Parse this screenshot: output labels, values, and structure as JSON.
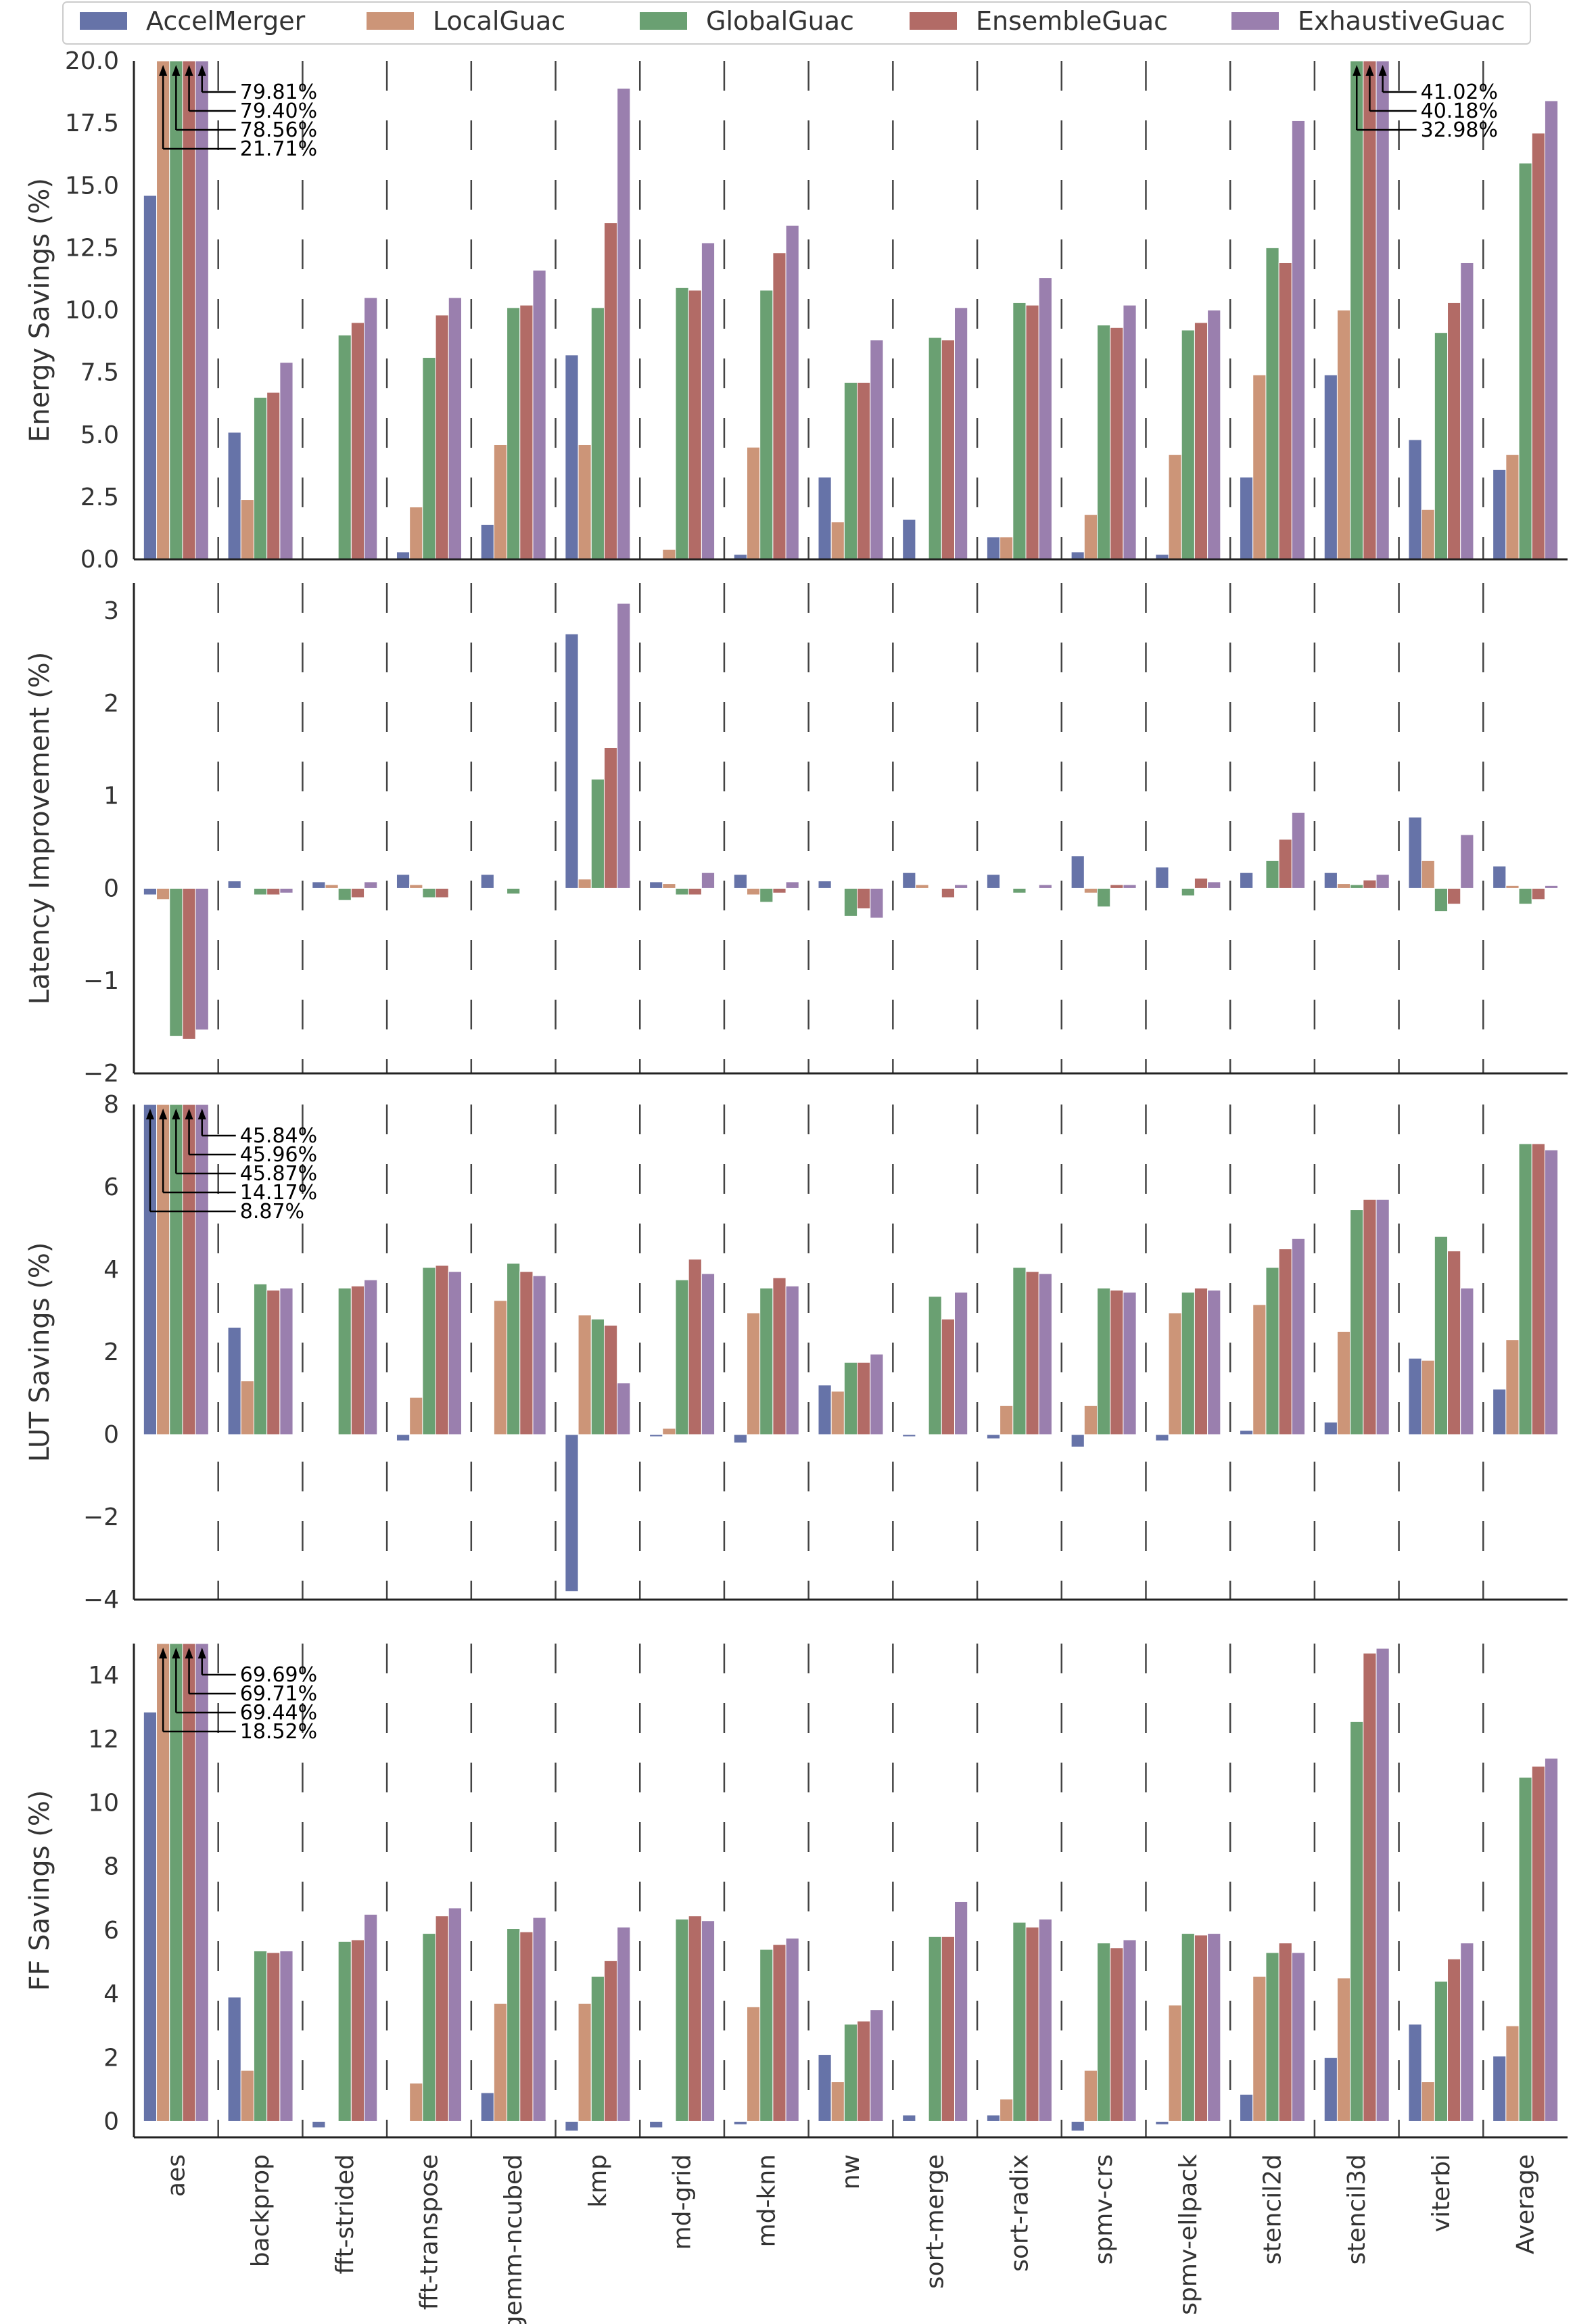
{
  "chart_data": {
    "type": "bar",
    "legend": {
      "placement": "top"
    },
    "categories": [
      "aes",
      "backprop",
      "fft-strided",
      "fft-transpose",
      "gemm-ncubed",
      "kmp",
      "md-grid",
      "md-knn",
      "nw",
      "sort-merge",
      "sort-radix",
      "spmv-crs",
      "spmv-ellpack",
      "stencil2d",
      "stencil3d",
      "viterbi",
      "Average"
    ],
    "series": [
      {
        "name": "AccelMerger",
        "color": "#6673a8"
      },
      {
        "name": "LocalGuac",
        "color": "#cc9578"
      },
      {
        "name": "GlobalGuac",
        "color": "#6aa072"
      },
      {
        "name": "EnsembleGuac",
        "color": "#b26b66"
      },
      {
        "name": "ExhaustiveGuac",
        "color": "#9a7fae"
      }
    ],
    "panels": [
      {
        "ylabel": "Energy Savings (%)",
        "ylim": [
          0,
          20
        ],
        "yticks": [
          0,
          2.5,
          5,
          7.5,
          10,
          12.5,
          15,
          17.5,
          20
        ],
        "ytick_labels": [
          "0.0",
          "2.5",
          "5.0",
          "7.5",
          "10.0",
          "12.5",
          "15.0",
          "17.5",
          "20.0"
        ],
        "values": [
          [
            14.6,
            5.1,
            0.0,
            0.3,
            1.4,
            8.2,
            0.0,
            0.2,
            3.3,
            1.6,
            0.9,
            0.3,
            0.2,
            3.3,
            7.4,
            4.8,
            3.6
          ],
          [
            21.71,
            2.4,
            0.0,
            2.1,
            4.6,
            4.6,
            0.4,
            4.5,
            1.5,
            0.0,
            0.9,
            1.8,
            4.2,
            7.4,
            10.0,
            2.0,
            4.2
          ],
          [
            78.56,
            6.5,
            9.0,
            8.1,
            10.1,
            10.1,
            10.9,
            10.8,
            7.1,
            8.9,
            10.3,
            9.4,
            9.2,
            12.5,
            32.98,
            9.1,
            15.9
          ],
          [
            79.4,
            6.7,
            9.5,
            9.8,
            10.2,
            13.5,
            10.8,
            12.3,
            7.1,
            8.8,
            10.2,
            9.3,
            9.5,
            11.9,
            40.18,
            10.3,
            17.1
          ],
          [
            79.81,
            7.9,
            10.5,
            10.5,
            11.6,
            18.9,
            12.7,
            13.4,
            8.8,
            10.1,
            11.3,
            10.2,
            10.0,
            17.6,
            41.02,
            11.9,
            18.4
          ]
        ],
        "callouts": [
          {
            "category": "aes",
            "labels": [
              "79.81%",
              "79.40%",
              "78.56%",
              "21.71%"
            ]
          },
          {
            "category": "stencil3d",
            "labels": [
              "41.02%",
              "40.18%",
              "32.98%"
            ]
          }
        ]
      },
      {
        "ylabel": "Latency Improvement (%)",
        "ylim": [
          -2,
          3.3
        ],
        "yticks": [
          -2,
          -1,
          0,
          1,
          2,
          3
        ],
        "ytick_labels": [
          "−2",
          "−1",
          "0",
          "1",
          "2",
          "3"
        ],
        "values": [
          [
            -0.07,
            0.08,
            0.07,
            0.15,
            0.15,
            2.75,
            0.07,
            0.15,
            0.08,
            0.17,
            0.15,
            0.35,
            0.23,
            0.17,
            0.17,
            0.77,
            0.24
          ],
          [
            -0.12,
            0.0,
            0.04,
            0.04,
            0.0,
            0.1,
            0.05,
            -0.07,
            0.0,
            0.04,
            0.0,
            -0.05,
            0.0,
            0.0,
            0.05,
            0.3,
            0.03
          ],
          [
            -1.6,
            -0.07,
            -0.13,
            -0.1,
            -0.06,
            1.18,
            -0.07,
            -0.15,
            -0.3,
            0.0,
            -0.05,
            -0.2,
            -0.08,
            0.3,
            0.04,
            -0.25,
            -0.17
          ],
          [
            -1.63,
            -0.07,
            -0.1,
            -0.1,
            0.0,
            1.52,
            -0.07,
            -0.05,
            -0.22,
            -0.1,
            0.0,
            0.04,
            0.11,
            0.53,
            0.09,
            -0.17,
            -0.12
          ],
          [
            -1.53,
            -0.05,
            0.07,
            0.0,
            0.0,
            3.08,
            0.17,
            0.07,
            -0.32,
            0.04,
            0.04,
            0.04,
            0.07,
            0.82,
            0.15,
            0.58,
            0.03
          ]
        ],
        "callouts": []
      },
      {
        "ylabel": "LUT Savings (%)",
        "ylim": [
          -4,
          8
        ],
        "yticks": [
          -4,
          -2,
          0,
          2,
          4,
          6,
          8
        ],
        "ytick_labels": [
          "−4",
          "−2",
          "0",
          "2",
          "4",
          "6",
          "8"
        ],
        "values": [
          [
            8.87,
            2.6,
            0.0,
            -0.15,
            0.0,
            -3.8,
            -0.05,
            -0.2,
            1.2,
            -0.05,
            -0.1,
            -0.3,
            -0.15,
            0.1,
            0.3,
            1.85,
            1.1
          ],
          [
            14.17,
            1.3,
            0.0,
            0.9,
            3.25,
            2.9,
            0.15,
            2.95,
            1.05,
            0.0,
            0.7,
            0.7,
            2.95,
            3.15,
            2.5,
            1.8,
            2.3
          ],
          [
            45.87,
            3.65,
            3.55,
            4.05,
            4.15,
            2.8,
            3.75,
            3.55,
            1.75,
            3.35,
            4.05,
            3.55,
            3.45,
            4.05,
            5.45,
            4.8,
            7.05
          ],
          [
            45.96,
            3.5,
            3.6,
            4.1,
            3.95,
            2.65,
            4.25,
            3.8,
            1.75,
            2.8,
            3.95,
            3.5,
            3.55,
            4.5,
            5.7,
            4.45,
            7.05
          ],
          [
            45.84,
            3.55,
            3.75,
            3.95,
            3.85,
            1.25,
            3.9,
            3.6,
            1.95,
            3.45,
            3.9,
            3.45,
            3.5,
            4.75,
            5.7,
            3.55,
            6.9
          ]
        ],
        "callouts": [
          {
            "category": "aes",
            "labels": [
              "45.84%",
              "45.96%",
              "45.87%",
              "14.17%",
              "8.87%"
            ]
          }
        ]
      },
      {
        "ylabel": "FF Savings (%)",
        "ylim": [
          -0.5,
          15
        ],
        "yticks": [
          0,
          2,
          4,
          6,
          8,
          10,
          12,
          14
        ],
        "ytick_labels": [
          "0",
          "2",
          "4",
          "6",
          "8",
          "10",
          "12",
          "14"
        ],
        "values": [
          [
            12.85,
            3.9,
            -0.2,
            0.0,
            0.9,
            -0.3,
            -0.2,
            -0.1,
            2.1,
            0.2,
            0.2,
            -0.3,
            -0.1,
            0.85,
            2.0,
            3.05,
            2.05
          ],
          [
            18.52,
            1.6,
            0.0,
            1.2,
            3.7,
            3.7,
            0.0,
            3.6,
            1.25,
            0.0,
            0.7,
            1.6,
            3.65,
            4.55,
            4.5,
            1.25,
            3.0
          ],
          [
            69.44,
            5.35,
            5.65,
            5.9,
            6.05,
            4.55,
            6.35,
            5.4,
            3.05,
            5.8,
            6.25,
            5.6,
            5.9,
            5.3,
            12.55,
            4.4,
            10.8
          ],
          [
            69.71,
            5.3,
            5.7,
            6.45,
            5.95,
            5.05,
            6.45,
            5.55,
            3.15,
            5.8,
            6.1,
            5.45,
            5.85,
            5.6,
            14.7,
            5.1,
            11.15
          ],
          [
            69.69,
            5.35,
            6.5,
            6.7,
            6.4,
            6.1,
            6.3,
            5.75,
            3.5,
            6.9,
            6.35,
            5.7,
            5.9,
            5.3,
            14.85,
            5.6,
            11.4
          ]
        ],
        "callouts": [
          {
            "category": "aes",
            "labels": [
              "69.69%",
              "69.71%",
              "69.44%",
              "18.52%"
            ]
          }
        ]
      }
    ]
  }
}
